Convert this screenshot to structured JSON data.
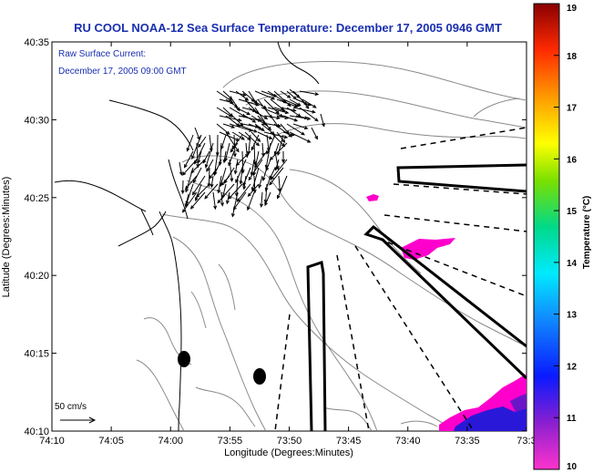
{
  "chart_data": {
    "type": "map",
    "title": "RU COOL   NOAA-12  Sea Surface Temperature:  December 17, 2005 0946 GMT",
    "subtitle_line1": "Raw Surface Current:",
    "subtitle_line2": "December 17, 2005 09:00 GMT",
    "xlabel": "Longitude (Degrees:Minutes)",
    "ylabel": "Latitude (Degrees:Minutes)",
    "x_ticks": [
      "74:10",
      "74:05",
      "74:00",
      "73:55",
      "73:50",
      "73:45",
      "73:40",
      "73:35",
      "73:3"
    ],
    "y_ticks": [
      "40:10",
      "40:15",
      "40:20",
      "40:25",
      "40:30",
      "40:35"
    ],
    "lon_range_min": [
      -74.1667,
      -73.5
    ],
    "lat_range_min": [
      40.1667,
      40.5833
    ],
    "scale_label": "50 cm/s",
    "colorbar": {
      "label": "Temperature (°C)",
      "ticks": [
        "10",
        "11",
        "12",
        "13",
        "14",
        "15",
        "16",
        "17",
        "18",
        "19"
      ],
      "range": [
        10,
        19
      ]
    },
    "colors": {
      "title": "#1a2fb0",
      "sst_patch": "#ff00cc",
      "sst_cold": "#2a18d8"
    }
  }
}
